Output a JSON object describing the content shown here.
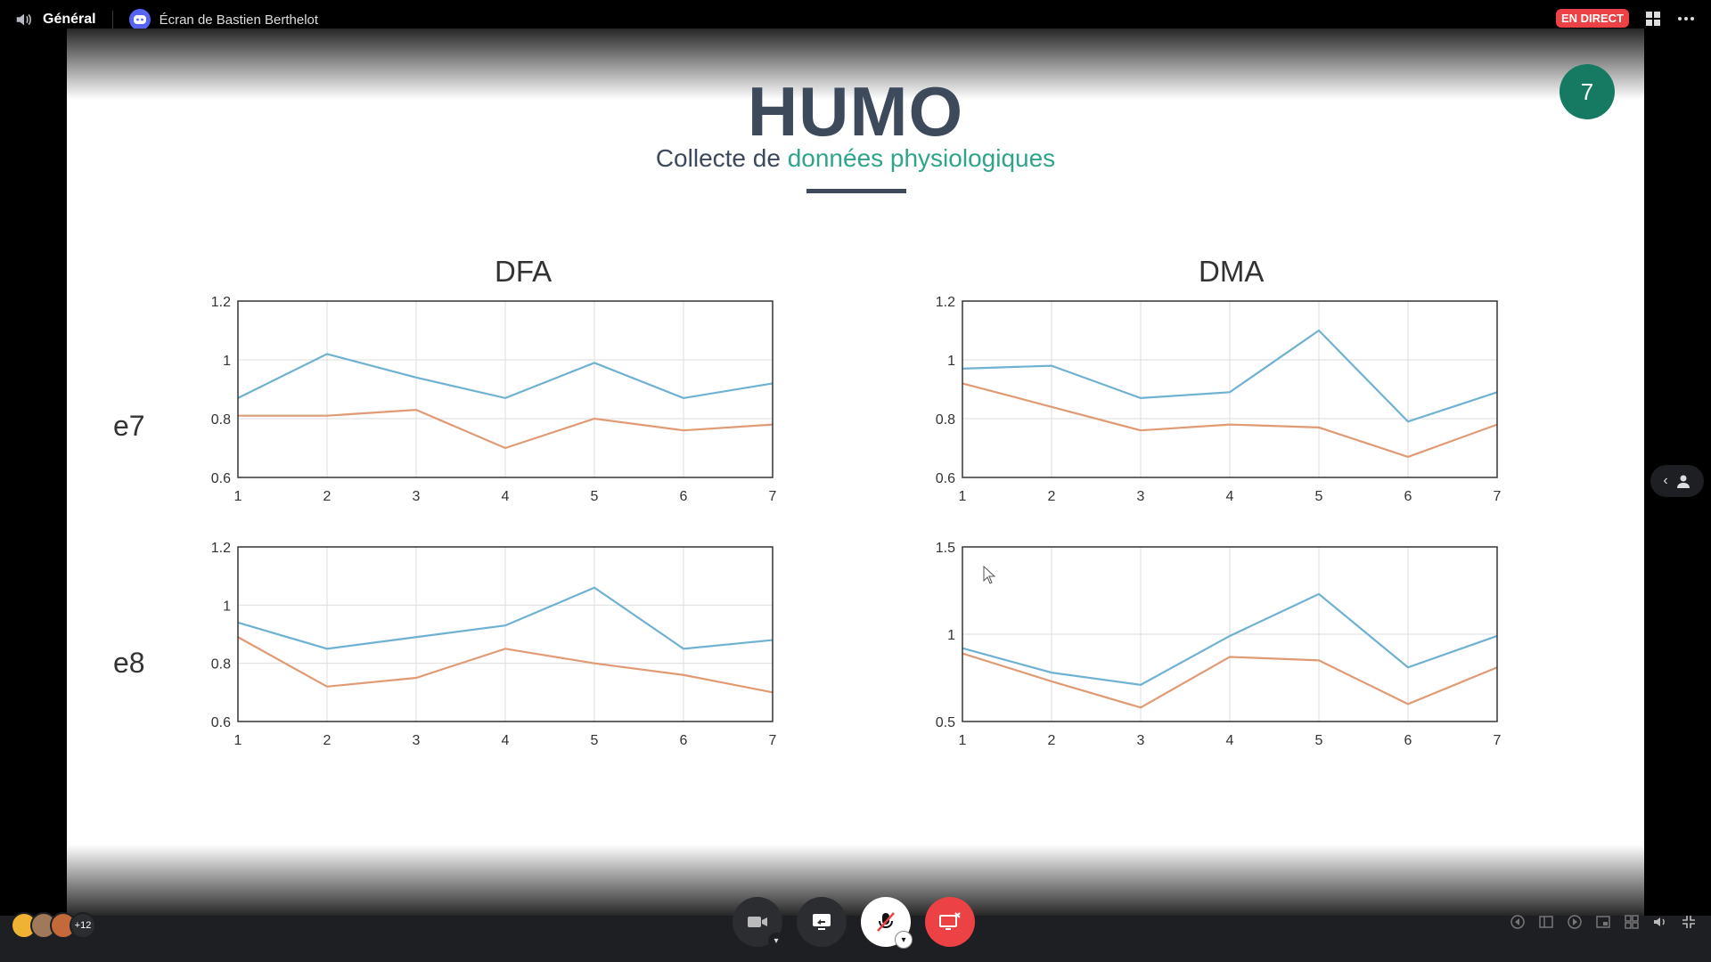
{
  "topbar": {
    "channel": "Général",
    "screen_title": "Écran de Bastien Berthelot",
    "live_badge": "EN DIRECT"
  },
  "slide": {
    "title": "HUMO",
    "subtitle_prefix": "Collecte de ",
    "subtitle_highlight": "données physiologiques",
    "page_number": "7",
    "column_titles": [
      "DFA",
      "DMA"
    ],
    "row_labels": [
      "e7",
      "e8"
    ],
    "series_colors": {
      "series_1": "#6fb1d1",
      "series_2": "#e09a74"
    }
  },
  "chart_data": [
    {
      "type": "line",
      "title": "",
      "row": "e7",
      "column": "DFA",
      "x": [
        1,
        2,
        3,
        4,
        5,
        6,
        7
      ],
      "ylim": [
        0.6,
        1.2
      ],
      "yticks": [
        "0.6",
        "0.8",
        "1",
        "1.2"
      ],
      "grid": true,
      "series": [
        {
          "values": [
            0.87,
            1.02,
            0.94,
            0.87,
            0.99,
            0.87,
            0.92
          ]
        },
        {
          "values": [
            0.81,
            0.81,
            0.83,
            0.7,
            0.8,
            0.76,
            0.78
          ]
        }
      ]
    },
    {
      "type": "line",
      "title": "",
      "row": "e7",
      "column": "DMA",
      "x": [
        1,
        2,
        3,
        4,
        5,
        6,
        7
      ],
      "ylim": [
        0.6,
        1.2
      ],
      "yticks": [
        "0.6",
        "0.8",
        "1",
        "1.2"
      ],
      "grid": true,
      "series": [
        {
          "values": [
            0.97,
            0.98,
            0.87,
            0.89,
            1.1,
            0.79,
            0.89
          ]
        },
        {
          "values": [
            0.92,
            0.84,
            0.76,
            0.78,
            0.77,
            0.67,
            0.78
          ]
        }
      ]
    },
    {
      "type": "line",
      "title": "",
      "row": "e8",
      "column": "DFA",
      "x": [
        1,
        2,
        3,
        4,
        5,
        6,
        7
      ],
      "ylim": [
        0.6,
        1.2
      ],
      "yticks": [
        "0.6",
        "0.8",
        "1",
        "1.2"
      ],
      "grid": true,
      "series": [
        {
          "values": [
            0.94,
            0.85,
            0.89,
            0.93,
            1.06,
            0.85,
            0.88
          ]
        },
        {
          "values": [
            0.89,
            0.72,
            0.75,
            0.85,
            0.8,
            0.76,
            0.7
          ]
        }
      ]
    },
    {
      "type": "line",
      "title": "",
      "row": "e8",
      "column": "DMA",
      "x": [
        1,
        2,
        3,
        4,
        5,
        6,
        7
      ],
      "ylim": [
        0.5,
        1.5
      ],
      "yticks": [
        "0.5",
        "1",
        "1.5"
      ],
      "grid": true,
      "series": [
        {
          "values": [
            0.92,
            0.78,
            0.71,
            0.99,
            1.23,
            0.81,
            0.99
          ]
        },
        {
          "values": [
            0.89,
            0.73,
            0.58,
            0.87,
            0.85,
            0.6,
            0.81
          ]
        }
      ]
    }
  ],
  "bottombar": {
    "extra_participants": "+12"
  }
}
